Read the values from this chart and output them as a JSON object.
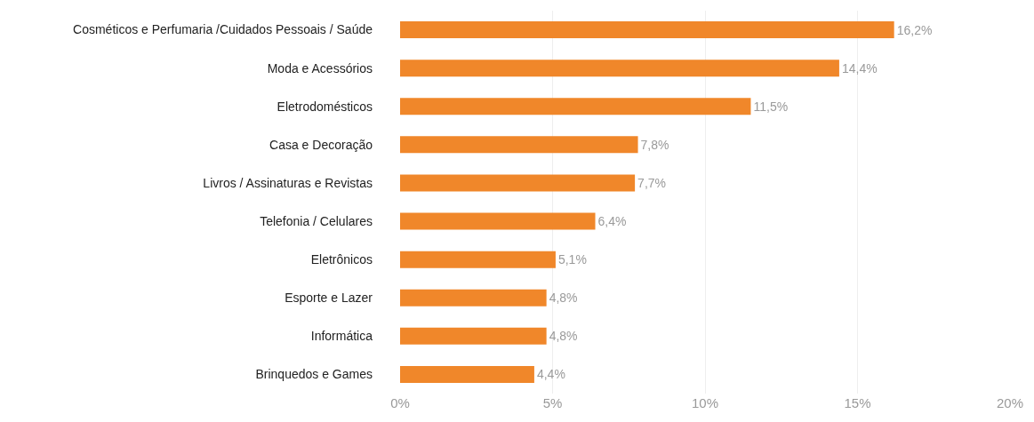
{
  "chart_data": {
    "type": "bar",
    "orientation": "horizontal",
    "categories": [
      "Cosméticos e Perfumaria /Cuidados Pessoais / Saúde",
      "Moda e Acessórios",
      "Eletrodomésticos",
      "Casa e Decoração",
      "Livros / Assinaturas e Revistas",
      "Telefonia / Celulares",
      "Eletrônicos",
      "Esporte e Lazer",
      "Informática",
      "Brinquedos e Games"
    ],
    "values": [
      16.2,
      14.4,
      11.5,
      7.8,
      7.7,
      6.4,
      5.1,
      4.8,
      4.8,
      4.4
    ],
    "value_labels": [
      "16,2%",
      "14,4%",
      "11,5%",
      "7,8%",
      "7,7%",
      "6,4%",
      "5,1%",
      "4,8%",
      "4,8%",
      "4,4%"
    ],
    "color": "#f0872a",
    "xlim": [
      0,
      20
    ],
    "xticks": [
      {
        "value": 0,
        "label": "0%"
      },
      {
        "value": 5,
        "label": "5%"
      },
      {
        "value": 10,
        "label": "10%"
      },
      {
        "value": 15,
        "label": "15%"
      },
      {
        "value": 20,
        "label": "20%"
      }
    ],
    "grid": "x",
    "legend": false
  }
}
